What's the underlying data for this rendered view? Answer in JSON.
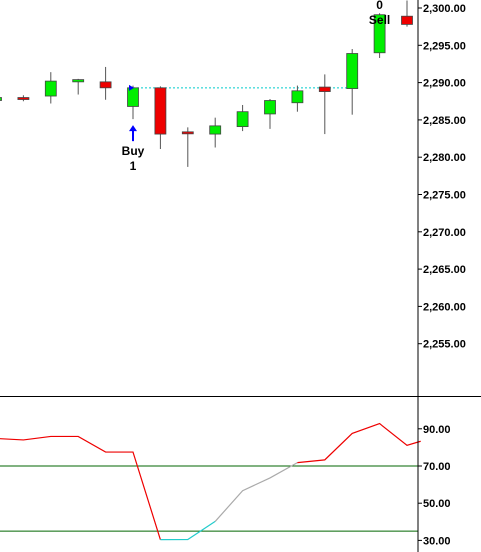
{
  "chart_data": [
    {
      "type": "candlestick",
      "title": "",
      "xlabel": "",
      "ylabel": "",
      "ylim": [
        2248,
        2301
      ],
      "y_ticks": [
        "2,300.00",
        "2,295.00",
        "2,290.00",
        "2,285.00",
        "2,280.00",
        "2,275.00",
        "2,270.00",
        "2,265.00",
        "2,260.00",
        "2,255.00"
      ],
      "y_tick_values": [
        2300,
        2295,
        2290,
        2285,
        2280,
        2275,
        2270,
        2265,
        2260,
        2255
      ],
      "grid": false,
      "colors": {
        "up": "#00ee00",
        "down": "#ee0000",
        "wick": "#555555",
        "signal": "#0000ff",
        "reference_line": "#00cccc"
      },
      "candles": [
        {
          "x": 0,
          "open": 2287.6,
          "high": 2288.2,
          "low": 2286.6,
          "close": 2288.0
        },
        {
          "x": 1,
          "open": 2288.0,
          "high": 2288.3,
          "low": 2287.5,
          "close": 2287.8
        },
        {
          "x": 2,
          "open": 2288.2,
          "high": 2291.4,
          "low": 2287.2,
          "close": 2290.2
        },
        {
          "x": 3,
          "open": 2290.1,
          "high": 2290.5,
          "low": 2288.4,
          "close": 2290.4
        },
        {
          "x": 4,
          "open": 2290.1,
          "high": 2292.1,
          "low": 2287.7,
          "close": 2289.3
        },
        {
          "x": 5,
          "open": 2286.8,
          "high": 2289.6,
          "low": 2285.1,
          "close": 2289.3
        },
        {
          "x": 6,
          "open": 2289.3,
          "high": 2289.5,
          "low": 2281.1,
          "close": 2283.1
        },
        {
          "x": 7,
          "open": 2283.4,
          "high": 2284.0,
          "low": 2278.7,
          "close": 2283.3
        },
        {
          "x": 8,
          "open": 2283.1,
          "high": 2285.3,
          "low": 2281.3,
          "close": 2284.2
        },
        {
          "x": 9,
          "open": 2284.1,
          "high": 2287.0,
          "low": 2283.5,
          "close": 2286.1
        },
        {
          "x": 10,
          "open": 2285.8,
          "high": 2287.8,
          "low": 2283.8,
          "close": 2287.6
        },
        {
          "x": 11,
          "open": 2287.3,
          "high": 2289.6,
          "low": 2286.1,
          "close": 2288.9
        },
        {
          "x": 12,
          "open": 2289.4,
          "high": 2291.1,
          "low": 2283.1,
          "close": 2288.8
        },
        {
          "x": 13,
          "open": 2289.2,
          "high": 2294.5,
          "low": 2285.7,
          "close": 2293.9
        },
        {
          "x": 14,
          "open": 2294.0,
          "high": 2299.3,
          "low": 2293.3,
          "close": 2299.1
        },
        {
          "x": 15,
          "open": 2298.9,
          "high": 2301.0,
          "low": 2297.5,
          "close": 2297.8
        }
      ],
      "reference_line": {
        "value": 2289.3,
        "from_x": 5,
        "to_x": 13
      },
      "annotations": [
        {
          "x": 5,
          "side": "below",
          "text": [
            "Buy",
            "1"
          ]
        },
        {
          "x": 15,
          "side": "above",
          "text": [
            "0",
            "Sell"
          ]
        }
      ]
    },
    {
      "type": "line",
      "title": "",
      "xlabel": "",
      "ylabel": "",
      "ylim": [
        29,
        98
      ],
      "y_ticks": [
        "90.00",
        "70.00",
        "50.00",
        "30.00"
      ],
      "y_tick_values": [
        90,
        70,
        50,
        30
      ],
      "horizontal_lines": [
        70,
        35
      ],
      "colors": {
        "main": "#ee0000",
        "oversold": "#22cccc",
        "recovery": "#aaaaaa",
        "level": "#006600"
      },
      "x": [
        -0.5,
        0,
        1,
        2,
        3,
        4,
        5,
        6,
        7,
        8,
        9,
        10,
        11,
        12,
        13,
        14,
        15,
        15.5
      ],
      "values": [
        85.7,
        84.8,
        84.0,
        85.9,
        85.9,
        77.5,
        77.5,
        30.4,
        30.5,
        40.2,
        56.7,
        63.6,
        71.8,
        73.3,
        87.5,
        92.8,
        81.1,
        83.3
      ],
      "segments": [
        {
          "color_key": "main",
          "from_index": 0,
          "to_index": 7
        },
        {
          "color_key": "oversold",
          "from_index": 7,
          "to_index": 9
        },
        {
          "color_key": "recovery",
          "from_index": 9,
          "to_index": 12
        },
        {
          "color_key": "main",
          "from_index": 12,
          "to_index": 17
        }
      ]
    }
  ]
}
